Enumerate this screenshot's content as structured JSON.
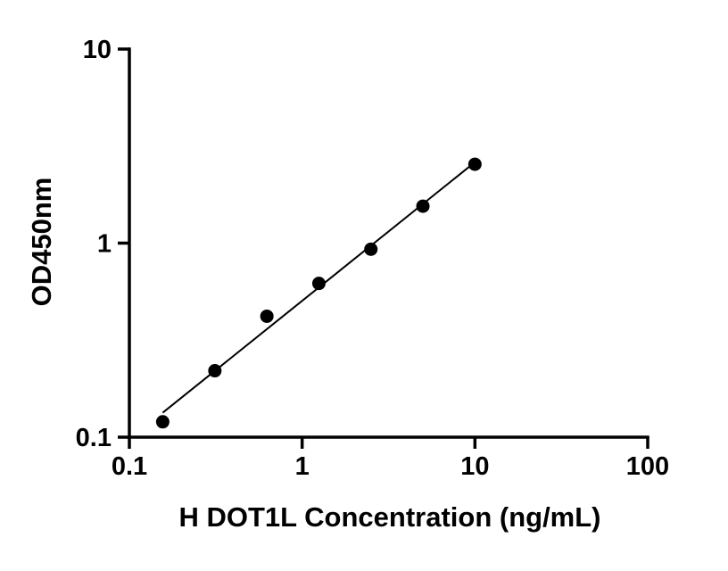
{
  "figure": {
    "background": "#ffffff",
    "ink": "#000000"
  },
  "chart_data": {
    "type": "scatter",
    "title": "",
    "xlabel": "H DOT1L Concentration (ng/mL)",
    "ylabel": "OD450nm",
    "xscale": "log",
    "yscale": "log",
    "xlim": [
      0.1,
      100
    ],
    "ylim": [
      0.1,
      10
    ],
    "x": [
      0.156,
      0.3125,
      0.625,
      1.25,
      2.5,
      5,
      10
    ],
    "y": [
      0.12,
      0.22,
      0.42,
      0.62,
      0.93,
      1.55,
      2.55
    ],
    "x_ticks": [
      {
        "value": 0.1,
        "label": "0.1"
      },
      {
        "value": 1,
        "label": "1"
      },
      {
        "value": 10,
        "label": "10"
      },
      {
        "value": 100,
        "label": "100"
      }
    ],
    "y_ticks": [
      {
        "value": 0.1,
        "label": "0.1"
      },
      {
        "value": 1,
        "label": "1"
      },
      {
        "value": 10,
        "label": "10"
      }
    ],
    "trend_line": {
      "show": true,
      "fit": "least-squares-loglog"
    },
    "marker": {
      "shape": "circle",
      "color": "#000000",
      "radius": 7.5
    },
    "line_color": "#000000",
    "grid": false,
    "legend": false
  }
}
